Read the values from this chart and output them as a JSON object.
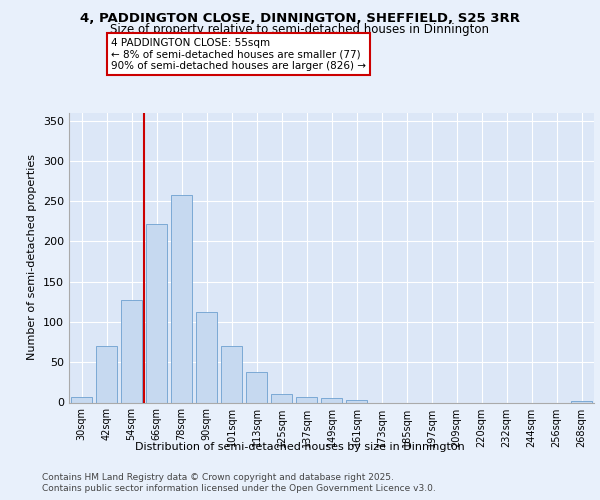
{
  "title_line1": "4, PADDINGTON CLOSE, DINNINGTON, SHEFFIELD, S25 3RR",
  "title_line2": "Size of property relative to semi-detached houses in Dinnington",
  "xlabel": "Distribution of semi-detached houses by size in Dinnington",
  "ylabel": "Number of semi-detached properties",
  "categories": [
    "30sqm",
    "42sqm",
    "54sqm",
    "66sqm",
    "78sqm",
    "90sqm",
    "101sqm",
    "113sqm",
    "125sqm",
    "137sqm",
    "149sqm",
    "161sqm",
    "173sqm",
    "185sqm",
    "197sqm",
    "209sqm",
    "220sqm",
    "232sqm",
    "244sqm",
    "256sqm",
    "268sqm"
  ],
  "values": [
    7,
    70,
    127,
    222,
    257,
    112,
    70,
    38,
    10,
    7,
    5,
    3,
    0,
    0,
    0,
    0,
    0,
    0,
    0,
    0,
    2
  ],
  "bar_color": "#c6d9f0",
  "bar_edge_color": "#6da0d0",
  "highlight_color": "#cc0000",
  "highlight_bar_index": 2,
  "annotation_text": "4 PADDINGTON CLOSE: 55sqm\n← 8% of semi-detached houses are smaller (77)\n90% of semi-detached houses are larger (826) →",
  "ylim": [
    0,
    360
  ],
  "yticks": [
    0,
    50,
    100,
    150,
    200,
    250,
    300,
    350
  ],
  "bg_color": "#e8f0fb",
  "plot_bg_color": "#dce7f7",
  "footer_line1": "Contains HM Land Registry data © Crown copyright and database right 2025.",
  "footer_line2": "Contains public sector information licensed under the Open Government Licence v3.0."
}
